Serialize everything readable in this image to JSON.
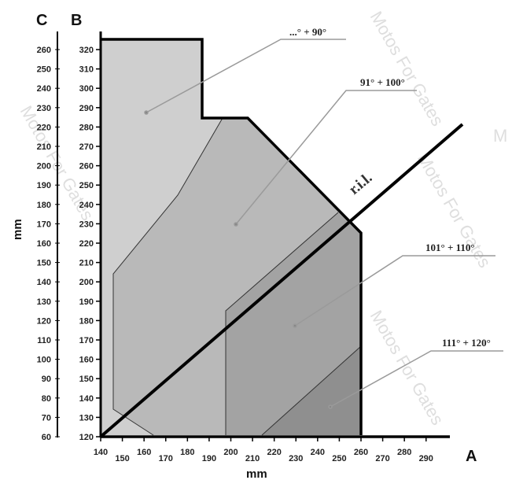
{
  "axes": {
    "c_letter": "C",
    "b_letter": "B",
    "a_letter": "A",
    "y_unit": "mm",
    "x_unit": "mm",
    "c_ticks": [
      260,
      250,
      240,
      230,
      220,
      210,
      200,
      190,
      180,
      170,
      160,
      150,
      140,
      130,
      120,
      110,
      100,
      90,
      80,
      70,
      60
    ],
    "b_ticks": [
      320,
      310,
      300,
      290,
      280,
      270,
      260,
      250,
      240,
      230,
      220,
      210,
      200,
      190,
      180,
      170,
      160,
      150,
      140,
      130,
      120
    ],
    "a_ticks": [
      140,
      150,
      160,
      170,
      180,
      190,
      200,
      210,
      220,
      230,
      240,
      250,
      260,
      270,
      280,
      290
    ]
  },
  "zones": [
    {
      "label": "...° + 90°",
      "fill": "#cfcfcf"
    },
    {
      "label": "91° + 100°",
      "fill": "#b9b9b9"
    },
    {
      "label": "101° + 110°",
      "fill": "#a3a3a3"
    },
    {
      "label": "111° + 120°",
      "fill": "#8f8f8f"
    }
  ],
  "reference_line": {
    "label": "r.i.l."
  },
  "watermark": "Motos For Gates",
  "colors": {
    "outline": "#000000",
    "leader": "#9a9a9a"
  }
}
